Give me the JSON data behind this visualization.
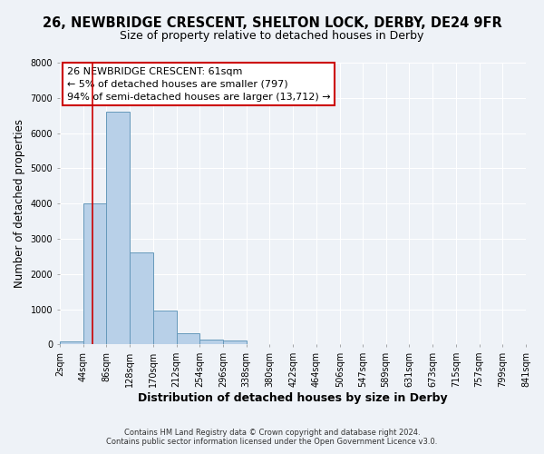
{
  "title": "26, NEWBRIDGE CRESCENT, SHELTON LOCK, DERBY, DE24 9FR",
  "subtitle": "Size of property relative to detached houses in Derby",
  "xlabel": "Distribution of detached houses by size in Derby",
  "ylabel": "Number of detached properties",
  "bin_edges": [
    2,
    44,
    86,
    128,
    170,
    212,
    254,
    296,
    338,
    380,
    422,
    464,
    506,
    547,
    589,
    631,
    673,
    715,
    757,
    799,
    841
  ],
  "bar_heights": [
    75,
    4000,
    6600,
    2600,
    950,
    330,
    130,
    100,
    0,
    0,
    0,
    0,
    0,
    0,
    0,
    0,
    0,
    0,
    0,
    0
  ],
  "bar_color": "#b8d0e8",
  "bar_edge_color": "#6699bb",
  "property_line_x": 61,
  "property_line_color": "#cc0000",
  "ylim": [
    0,
    8000
  ],
  "yticks": [
    0,
    1000,
    2000,
    3000,
    4000,
    5000,
    6000,
    7000,
    8000
  ],
  "annotation_line1": "26 NEWBRIDGE CRESCENT: 61sqm",
  "annotation_line2": "← 5% of detached houses are smaller (797)",
  "annotation_line3": "94% of semi-detached houses are larger (13,712) →",
  "footer_line1": "Contains HM Land Registry data © Crown copyright and database right 2024.",
  "footer_line2": "Contains public sector information licensed under the Open Government Licence v3.0.",
  "background_color": "#eef2f7",
  "grid_color": "#ffffff",
  "tick_label_size": 7,
  "title_fontsize": 10.5,
  "subtitle_fontsize": 9,
  "xlabel_fontsize": 9,
  "ylabel_fontsize": 8.5,
  "ann_fontsize": 8,
  "footer_fontsize": 6
}
